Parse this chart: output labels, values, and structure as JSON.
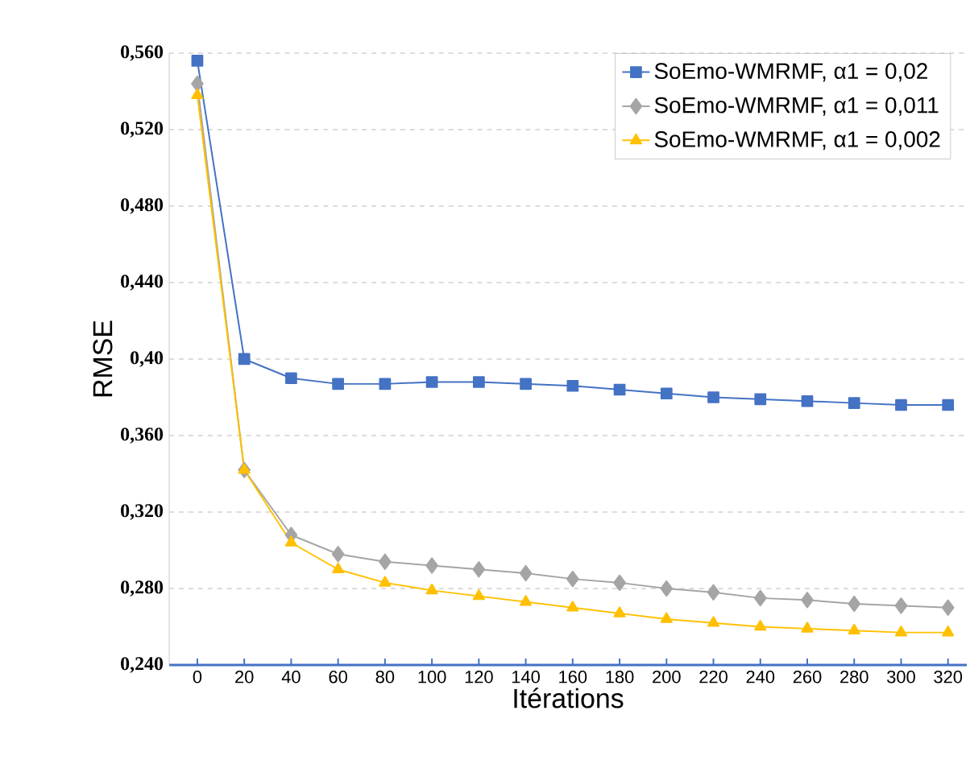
{
  "chart_data": {
    "type": "line",
    "xlabel": "Itérations",
    "ylabel": "RMSE",
    "categories": [
      "0",
      "20",
      "40",
      "60",
      "80",
      "100",
      "120",
      "140",
      "160",
      "180",
      "200",
      "220",
      "240",
      "260",
      "280",
      "300",
      "320"
    ],
    "series": [
      {
        "name": "SoEmo-WMRMF, α1 = 0,02",
        "color": "#4472c4",
        "marker": "square",
        "values": [
          0.556,
          0.4,
          0.39,
          0.387,
          0.387,
          0.388,
          0.388,
          0.387,
          0.386,
          0.384,
          0.382,
          0.38,
          0.379,
          0.378,
          0.377,
          0.376,
          0.376
        ]
      },
      {
        "name": "SoEmo-WMRMF, α1 = 0,011",
        "color": "#a5a5a5",
        "marker": "diamond",
        "values": [
          0.544,
          0.342,
          0.308,
          0.298,
          0.294,
          0.292,
          0.29,
          0.288,
          0.285,
          0.283,
          0.28,
          0.278,
          0.275,
          0.274,
          0.272,
          0.271,
          0.27
        ]
      },
      {
        "name": "SoEmo-WMRMF, α1 = 0,002",
        "color": "#ffc000",
        "marker": "triangle",
        "values": [
          0.538,
          0.342,
          0.304,
          0.29,
          0.283,
          0.279,
          0.276,
          0.273,
          0.27,
          0.267,
          0.264,
          0.262,
          0.26,
          0.259,
          0.258,
          0.257,
          0.257
        ]
      }
    ],
    "ylim": [
      0.24,
      0.56
    ],
    "yticks": [
      {
        "value": 0.24,
        "label": "0,240"
      },
      {
        "value": 0.28,
        "label": "0,280"
      },
      {
        "value": 0.32,
        "label": "0,320"
      },
      {
        "value": 0.36,
        "label": "0,360"
      },
      {
        "value": 0.4,
        "label": "0,40"
      },
      {
        "value": 0.44,
        "label": "0,440"
      },
      {
        "value": 0.48,
        "label": "0,480"
      },
      {
        "value": 0.52,
        "label": "0,520"
      },
      {
        "value": 0.56,
        "label": "0,560"
      }
    ],
    "grid": "y",
    "legend": "top right",
    "line_style": "solid"
  }
}
